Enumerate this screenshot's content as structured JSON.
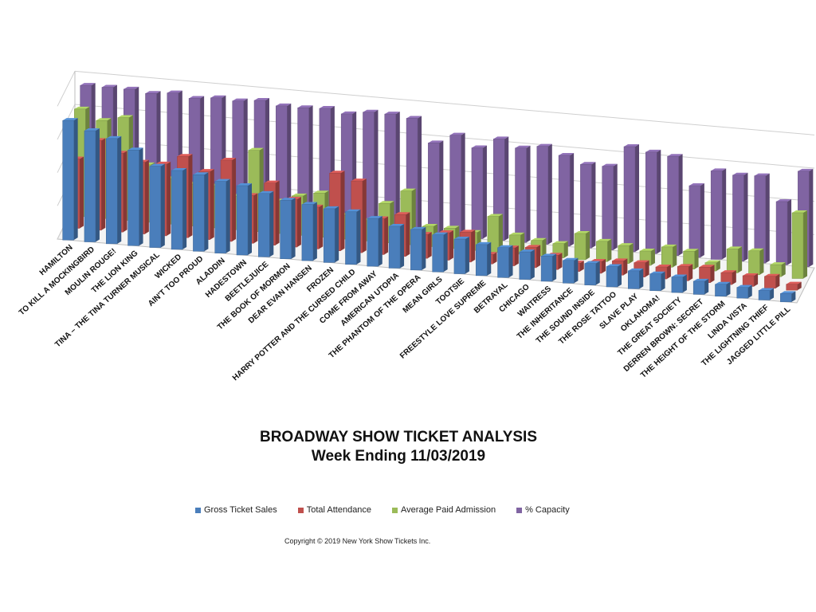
{
  "chart_data": {
    "type": "bar",
    "title": "BROADWAY SHOW TICKET ANALYSIS",
    "subtitle": "Week Ending 11/03/2019",
    "copyright": "Copyright © 2019 New York Show Tickets Inc.",
    "grid": true,
    "legend_position": "bottom",
    "categories": [
      "HAMILTON",
      "TO KILL A MOCKINGBIRD",
      "MOULIN ROUGE!",
      "THE LION KING",
      "TINA – THE TINA TURNER MUSICAL",
      "WICKED",
      "AIN'T TOO PROUD",
      "ALADDIN",
      "HADESTOWN",
      "BEETLEJUICE",
      "THE BOOK OF MORMON",
      "DEAR EVAN HANSEN",
      "FROZEN",
      "HARRY POTTER AND THE CURSED CHILD",
      "COME FROM AWAY",
      "AMERICAN UTOPIA",
      "THE PHANTOM OF THE OPERA",
      "MEAN GIRLS",
      "TOOTSIE",
      "FREESTYLE LOVE SUPREME",
      "BETRAYAL",
      "CHICAGO",
      "WAITRESS",
      "THE INHERITANCE",
      "THE SOUND INSIDE",
      "THE ROSE TATTOO",
      "SLAVE PLAY",
      "OKLAHOMA!",
      "THE GREAT SOCIETY",
      "DERREN BROWN: SECRET",
      "THE HEIGHT OF THE STORM",
      "LINDA VISTA",
      "THE LIGHTNING THIEF",
      "JAGGED LITTLE PILL"
    ],
    "series": [
      {
        "name": "Gross Ticket Sales",
        "color": "#4a7ebb",
        "values": [
          100,
          93,
          88,
          80,
          68,
          66,
          64,
          60,
          58,
          53,
          49,
          47,
          45,
          44,
          40,
          35,
          34,
          31,
          29,
          26,
          25,
          23,
          21,
          19,
          18,
          17,
          15,
          14,
          13,
          11,
          10,
          9,
          8,
          7
        ]
      },
      {
        "name": "Total Attendance",
        "color": "#c0504d",
        "values": [
          58,
          75,
          66,
          60,
          60,
          68,
          57,
          68,
          40,
          52,
          40,
          35,
          65,
          60,
          30,
          35,
          20,
          23,
          25,
          8,
          15,
          17,
          12,
          7,
          10,
          12,
          12,
          10,
          12,
          13,
          10,
          9,
          10,
          5
        ]
      },
      {
        "name": "Average Paid Admission",
        "color": "#9bbb59",
        "values": [
          90,
          82,
          86,
          48,
          38,
          35,
          35,
          28,
          68,
          27,
          33,
          37,
          20,
          17,
          33,
          45,
          17,
          17,
          15,
          30,
          16,
          13,
          12,
          22,
          17,
          15,
          12,
          17,
          15,
          7,
          20,
          20,
          10,
          55
        ]
      },
      {
        "name": "% Capacity",
        "color": "#8064a2",
        "values": [
          100,
          100,
          100,
          98,
          100,
          97,
          99,
          98,
          100,
          97,
          97,
          98,
          95,
          98,
          98,
          96,
          77,
          85,
          76,
          85,
          79,
          82,
          76,
          70,
          70,
          88,
          85,
          83,
          60,
          74,
          72,
          73,
          53,
          80
        ]
      }
    ]
  }
}
